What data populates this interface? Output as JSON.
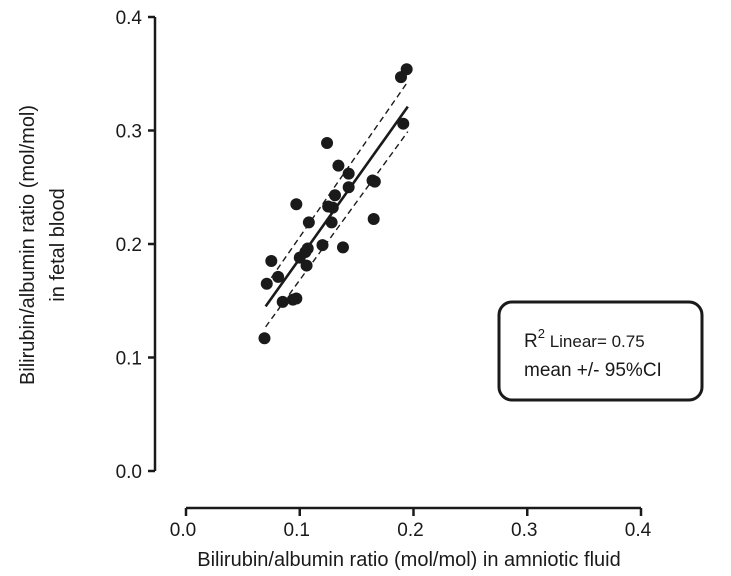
{
  "chart_data": {
    "type": "scatter",
    "title": "",
    "xlabel": "Bilirubin/albumin ratio (mol/mol) in amniotic fluid",
    "ylabel_line1": "Bilirubin/albumin ratio (mol/mol)",
    "ylabel_line2": "in fetal blood",
    "xlim": [
      0.0,
      0.4
    ],
    "ylim": [
      0.0,
      0.4
    ],
    "xticks": [
      "0.0",
      "0.1",
      "0.2",
      "0.3",
      "0.4"
    ],
    "yticks": [
      "0.0",
      "0.1",
      "0.2",
      "0.3",
      "0.4"
    ],
    "grid": false,
    "points": [
      {
        "x": 0.069,
        "y": 0.117
      },
      {
        "x": 0.071,
        "y": 0.165
      },
      {
        "x": 0.075,
        "y": 0.185
      },
      {
        "x": 0.081,
        "y": 0.171
      },
      {
        "x": 0.085,
        "y": 0.149
      },
      {
        "x": 0.094,
        "y": 0.151
      },
      {
        "x": 0.097,
        "y": 0.152
      },
      {
        "x": 0.097,
        "y": 0.235
      },
      {
        "x": 0.1,
        "y": 0.188
      },
      {
        "x": 0.105,
        "y": 0.193
      },
      {
        "x": 0.106,
        "y": 0.181
      },
      {
        "x": 0.107,
        "y": 0.196
      },
      {
        "x": 0.108,
        "y": 0.219
      },
      {
        "x": 0.12,
        "y": 0.199
      },
      {
        "x": 0.124,
        "y": 0.289
      },
      {
        "x": 0.125,
        "y": 0.233
      },
      {
        "x": 0.128,
        "y": 0.219
      },
      {
        "x": 0.129,
        "y": 0.232
      },
      {
        "x": 0.131,
        "y": 0.243
      },
      {
        "x": 0.134,
        "y": 0.269
      },
      {
        "x": 0.138,
        "y": 0.197
      },
      {
        "x": 0.143,
        "y": 0.262
      },
      {
        "x": 0.143,
        "y": 0.25
      },
      {
        "x": 0.164,
        "y": 0.256
      },
      {
        "x": 0.165,
        "y": 0.222
      },
      {
        "x": 0.166,
        "y": 0.255
      },
      {
        "x": 0.189,
        "y": 0.347
      },
      {
        "x": 0.191,
        "y": 0.306
      },
      {
        "x": 0.194,
        "y": 0.354
      }
    ],
    "fit_line": {
      "x": [
        0.07,
        0.195
      ],
      "y": [
        0.145,
        0.321
      ]
    },
    "ci_upper": {
      "x": [
        0.07,
        0.195
      ],
      "y": [
        0.163,
        0.343
      ]
    },
    "ci_lower": {
      "x": [
        0.07,
        0.195
      ],
      "y": [
        0.127,
        0.299
      ]
    },
    "legend": {
      "r": "R",
      "sup": "2",
      "rest": " Linear= 0.75",
      "line2": "mean +/- 95%CI",
      "placement": "right"
    }
  }
}
